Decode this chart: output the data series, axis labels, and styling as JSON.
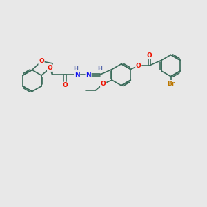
{
  "bg_color": "#e8e8e8",
  "bond_color": "#3a6b5a",
  "bond_width": 1.2,
  "atom_colors": {
    "O": "#ee1100",
    "N": "#1111ee",
    "Br": "#bb7700",
    "H": "#5566aa",
    "C": "#3a6b5a"
  },
  "scale": 1.0
}
